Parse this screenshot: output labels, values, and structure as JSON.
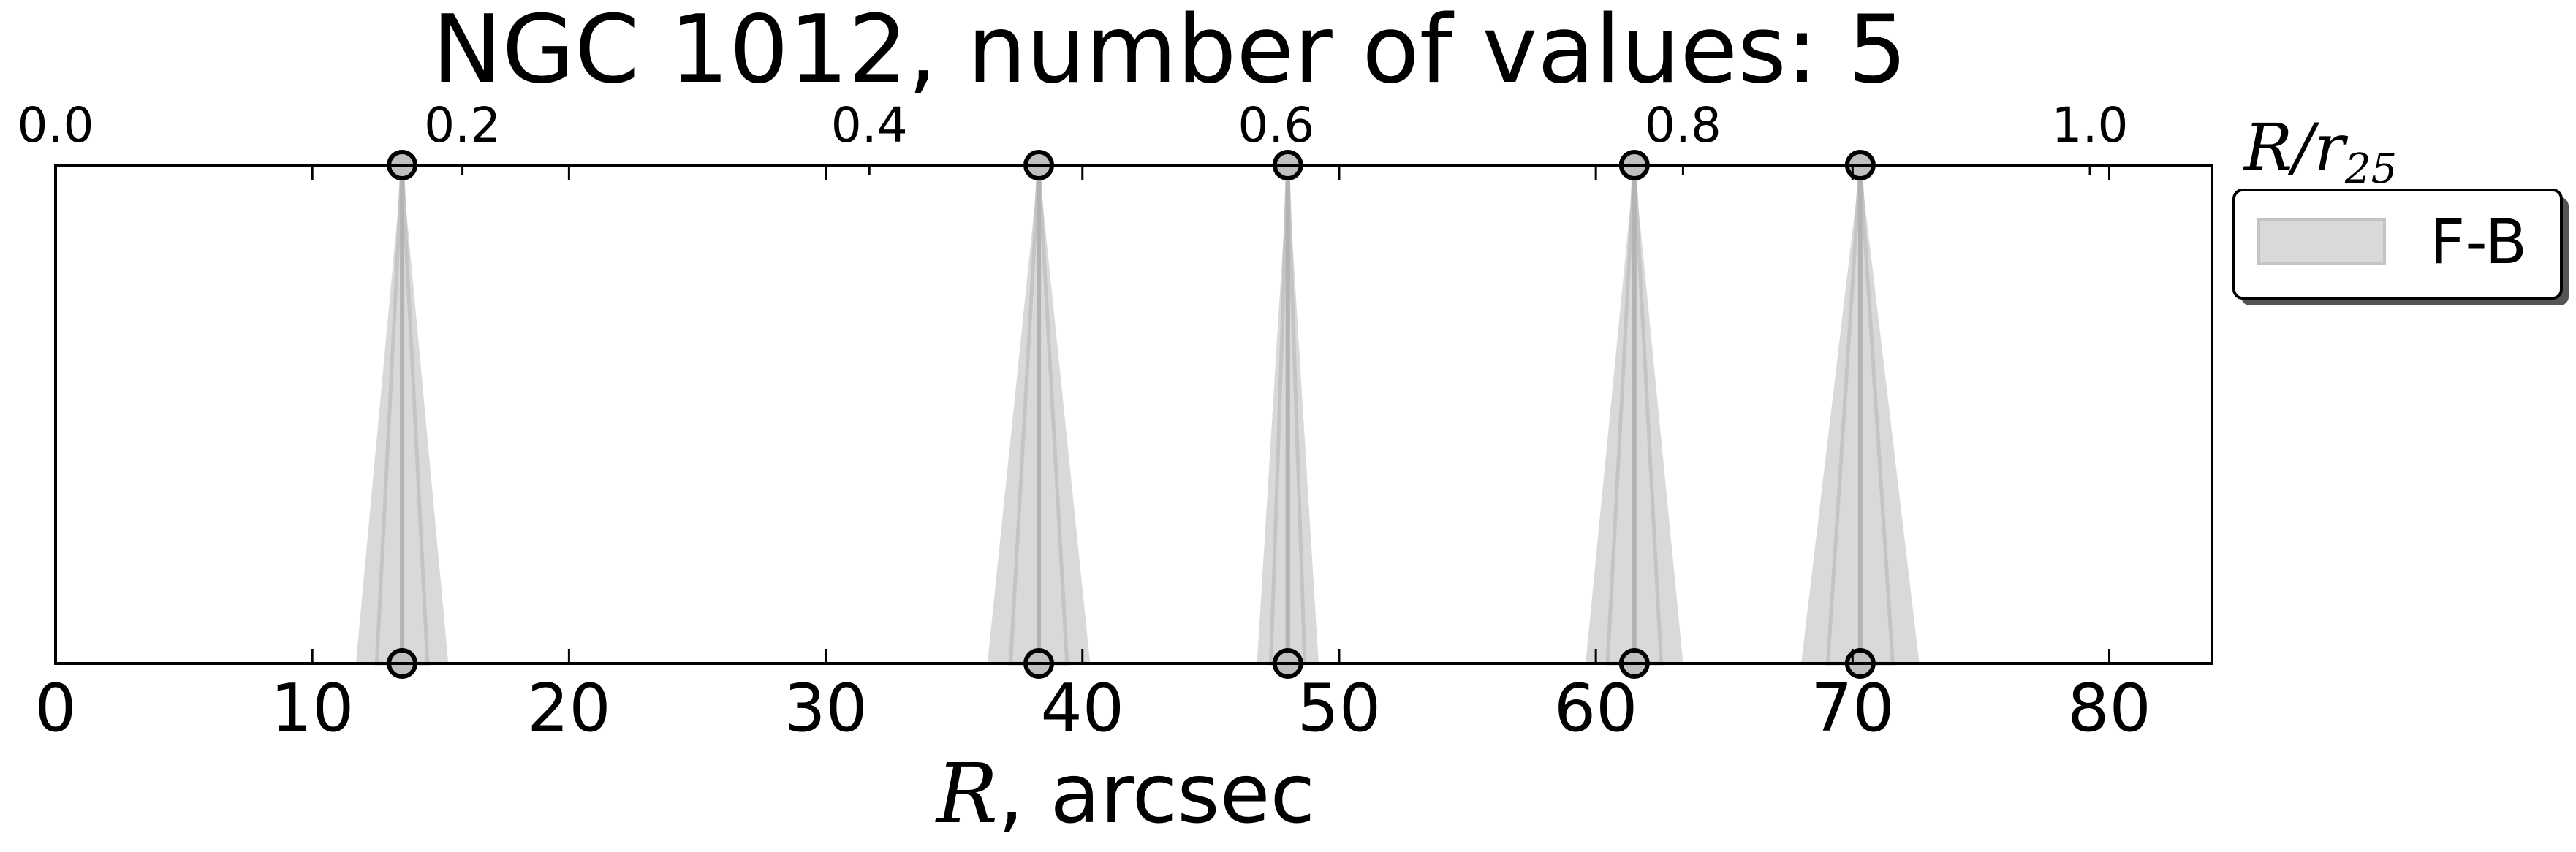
{
  "chart_data": {
    "type": "scatter",
    "title": "NGC 1012, number of values: 5",
    "xlabel": {
      "symbol": "R",
      "rest": ", arcsec"
    },
    "xlim": [
      0,
      84
    ],
    "xticks": [
      0,
      10,
      20,
      30,
      40,
      50,
      60,
      70,
      80
    ],
    "top_axis": {
      "label": {
        "symbol": "R/r",
        "sub": "25"
      },
      "xlim": [
        0.0,
        1.06
      ],
      "ticks": [
        {
          "value": 0.0,
          "label": "0.0"
        },
        {
          "value": 0.2,
          "label": "0.2"
        },
        {
          "value": 0.4,
          "label": "0.4"
        },
        {
          "value": 0.6,
          "label": "0.6"
        },
        {
          "value": 0.8,
          "label": "0.8"
        },
        {
          "value": 1.0,
          "label": "1.0"
        }
      ]
    },
    "series": [
      {
        "name": "F-B",
        "points": [
          {
            "x": 13.5,
            "half_width": 1.8
          },
          {
            "x": 38.3,
            "half_width": 2.0
          },
          {
            "x": 48.0,
            "half_width": 1.2
          },
          {
            "x": 61.5,
            "half_width": 1.9
          },
          {
            "x": 70.3,
            "half_width": 2.3
          }
        ]
      }
    ],
    "legend": {
      "position": "outside-right-top",
      "label": "F-B"
    },
    "colors": {
      "fill": "#d9d9d9",
      "stroke": "#c4c4c4",
      "line": "#b3b3b3",
      "marker": "#bfbfbf",
      "axis": "#000000"
    },
    "grid": false
  }
}
